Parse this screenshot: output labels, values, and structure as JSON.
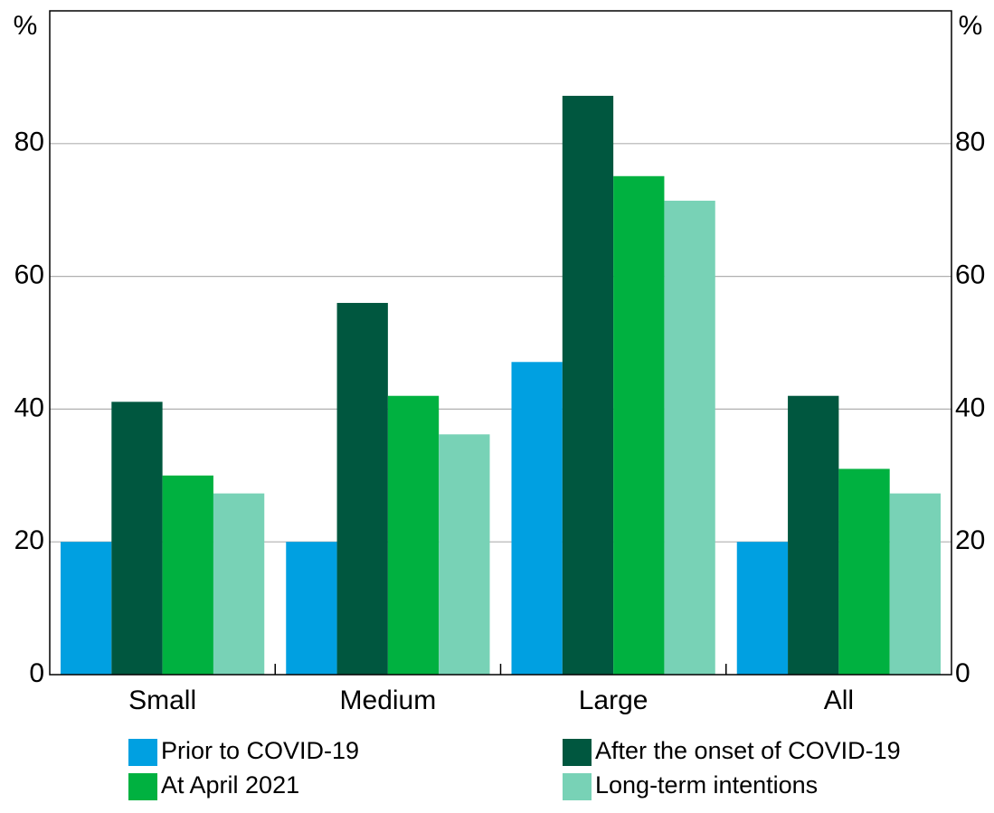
{
  "chart_data": {
    "type": "bar",
    "y_unit": "%",
    "categories": [
      "Small",
      "Medium",
      "Large",
      "All"
    ],
    "series": [
      {
        "name": "Prior to COVID-19",
        "color": "#00a0e1",
        "values": [
          20,
          20,
          47.1,
          20
        ]
      },
      {
        "name": "After the onset of COVID-19",
        "color": "#00573f",
        "values": [
          41.1,
          56,
          87.2,
          42
        ]
      },
      {
        "name": "At April 2021",
        "color": "#00b140",
        "values": [
          30,
          42,
          75.1,
          31
        ]
      },
      {
        "name": "Long-term intentions",
        "color": "#78d2b6",
        "values": [
          27.3,
          36.2,
          71.4,
          27.3
        ]
      }
    ],
    "ylim": [
      0,
      100
    ],
    "yticks": [
      0,
      20,
      40,
      60,
      80
    ],
    "grid": true
  }
}
